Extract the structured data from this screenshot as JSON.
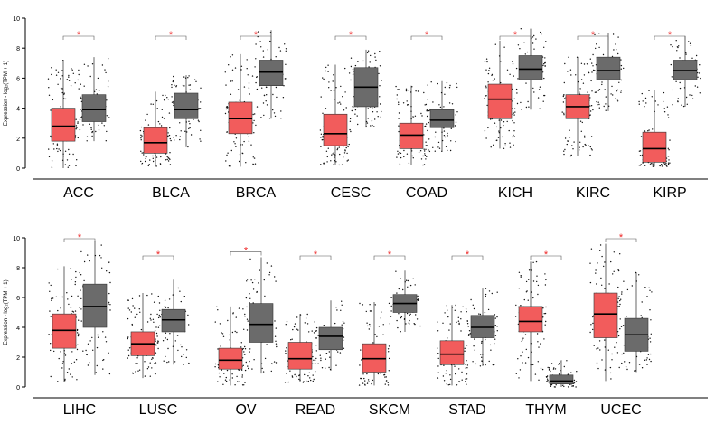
{
  "chart_data": [
    {
      "type": "boxplot",
      "panel": "top",
      "ylabel": "Expression - log₂(TPM + 1)",
      "ylim": [
        0,
        10
      ],
      "yticks": [
        0,
        2,
        4,
        6,
        8,
        10
      ],
      "significance_marker": "*",
      "colors": {
        "tumor": "#f25c5c",
        "normal": "#6b6b6b"
      },
      "groups": [
        {
          "label": "ACC",
          "tumor": {
            "min": 0.0,
            "q1": 1.8,
            "median": 2.8,
            "q3": 4.0,
            "max": 7.2
          },
          "normal": {
            "min": 1.8,
            "q1": 3.1,
            "median": 3.9,
            "q3": 4.9,
            "max": 7.4
          }
        },
        {
          "label": "BLCA",
          "tumor": {
            "min": 0.1,
            "q1": 1.0,
            "median": 1.7,
            "q3": 2.7,
            "max": 5.1
          },
          "normal": {
            "min": 1.4,
            "q1": 3.3,
            "median": 3.9,
            "q3": 5.0,
            "max": 6.2
          }
        },
        {
          "label": "BRCA",
          "tumor": {
            "min": 0.1,
            "q1": 2.3,
            "median": 3.3,
            "q3": 4.4,
            "max": 7.6
          },
          "normal": {
            "min": 3.3,
            "q1": 5.5,
            "median": 6.4,
            "q3": 7.2,
            "max": 9.2
          }
        },
        {
          "label": "CESC",
          "tumor": {
            "min": 0.2,
            "q1": 1.5,
            "median": 2.3,
            "q3": 3.6,
            "max": 6.9
          },
          "normal": {
            "min": 2.7,
            "q1": 4.1,
            "median": 5.4,
            "q3": 6.7,
            "max": 7.9
          }
        },
        {
          "label": "COAD",
          "tumor": {
            "min": 0.2,
            "q1": 1.3,
            "median": 2.2,
            "q3": 3.0,
            "max": 5.5
          },
          "normal": {
            "min": 1.1,
            "q1": 2.7,
            "median": 3.2,
            "q3": 3.9,
            "max": 5.8
          }
        },
        {
          "label": "KICH",
          "tumor": {
            "min": 1.3,
            "q1": 3.3,
            "median": 4.6,
            "q3": 5.6,
            "max": 8.5
          },
          "normal": {
            "min": 3.9,
            "q1": 5.9,
            "median": 6.6,
            "q3": 7.5,
            "max": 9.3
          }
        },
        {
          "label": "KIRC",
          "tumor": {
            "min": 0.8,
            "q1": 3.3,
            "median": 4.1,
            "q3": 4.9,
            "max": 7.4
          },
          "normal": {
            "min": 3.8,
            "q1": 5.9,
            "median": 6.5,
            "q3": 7.4,
            "max": 9.0
          }
        },
        {
          "label": "KIRP",
          "tumor": {
            "min": 0.1,
            "q1": 0.4,
            "median": 1.3,
            "q3": 2.4,
            "max": 5.2
          },
          "normal": {
            "min": 4.1,
            "q1": 5.9,
            "median": 6.5,
            "q3": 7.2,
            "max": 8.8
          }
        }
      ]
    },
    {
      "type": "boxplot",
      "panel": "bottom",
      "ylabel": "Expression - log₂(TPM + 1)",
      "ylim": [
        0,
        10
      ],
      "yticks": [
        0,
        2,
        4,
        6,
        8,
        10
      ],
      "significance_marker": "*",
      "colors": {
        "tumor": "#f25c5c",
        "normal": "#6b6b6b"
      },
      "groups": [
        {
          "label": "LIHC",
          "tumor": {
            "min": 0.3,
            "q1": 2.6,
            "median": 3.8,
            "q3": 4.9,
            "max": 8.1
          },
          "normal": {
            "min": 0.8,
            "q1": 4.0,
            "median": 5.4,
            "q3": 6.9,
            "max": 9.8
          }
        },
        {
          "label": "LUSC",
          "tumor": {
            "min": 0.6,
            "q1": 2.1,
            "median": 2.9,
            "q3": 3.7,
            "max": 6.3
          },
          "normal": {
            "min": 1.5,
            "q1": 3.7,
            "median": 4.5,
            "q3": 5.2,
            "max": 7.2
          }
        },
        {
          "label": "OV",
          "tumor": {
            "min": 0.1,
            "q1": 1.2,
            "median": 1.8,
            "q3": 2.6,
            "max": 5.4
          },
          "normal": {
            "min": 0.9,
            "q1": 3.0,
            "median": 4.2,
            "q3": 5.6,
            "max": 8.7
          }
        },
        {
          "label": "READ",
          "tumor": {
            "min": 0.3,
            "q1": 1.2,
            "median": 1.9,
            "q3": 3.0,
            "max": 4.9
          },
          "normal": {
            "min": 1.1,
            "q1": 2.5,
            "median": 3.4,
            "q3": 4.0,
            "max": 5.8
          }
        },
        {
          "label": "SKCM",
          "tumor": {
            "min": 0.1,
            "q1": 1.0,
            "median": 1.9,
            "q3": 2.9,
            "max": 5.7
          },
          "normal": {
            "min": 3.7,
            "q1": 5.0,
            "median": 5.6,
            "q3": 6.2,
            "max": 7.8
          }
        },
        {
          "label": "STAD",
          "tumor": {
            "min": 0.1,
            "q1": 1.5,
            "median": 2.2,
            "q3": 3.1,
            "max": 5.5
          },
          "normal": {
            "min": 1.4,
            "q1": 3.3,
            "median": 4.0,
            "q3": 4.8,
            "max": 6.6
          }
        },
        {
          "label": "THYM",
          "tumor": {
            "min": 0.4,
            "q1": 3.7,
            "median": 4.4,
            "q3": 5.4,
            "max": 8.4
          },
          "normal": {
            "min": 0.0,
            "q1": 0.2,
            "median": 0.4,
            "q3": 0.8,
            "max": 1.8
          }
        },
        {
          "label": "UCEC",
          "tumor": {
            "min": 0.4,
            "q1": 3.3,
            "median": 4.9,
            "q3": 6.3,
            "max": 9.6
          },
          "normal": {
            "min": 1.0,
            "q1": 2.4,
            "median": 3.5,
            "q3": 4.6,
            "max": 7.7
          }
        }
      ]
    }
  ]
}
